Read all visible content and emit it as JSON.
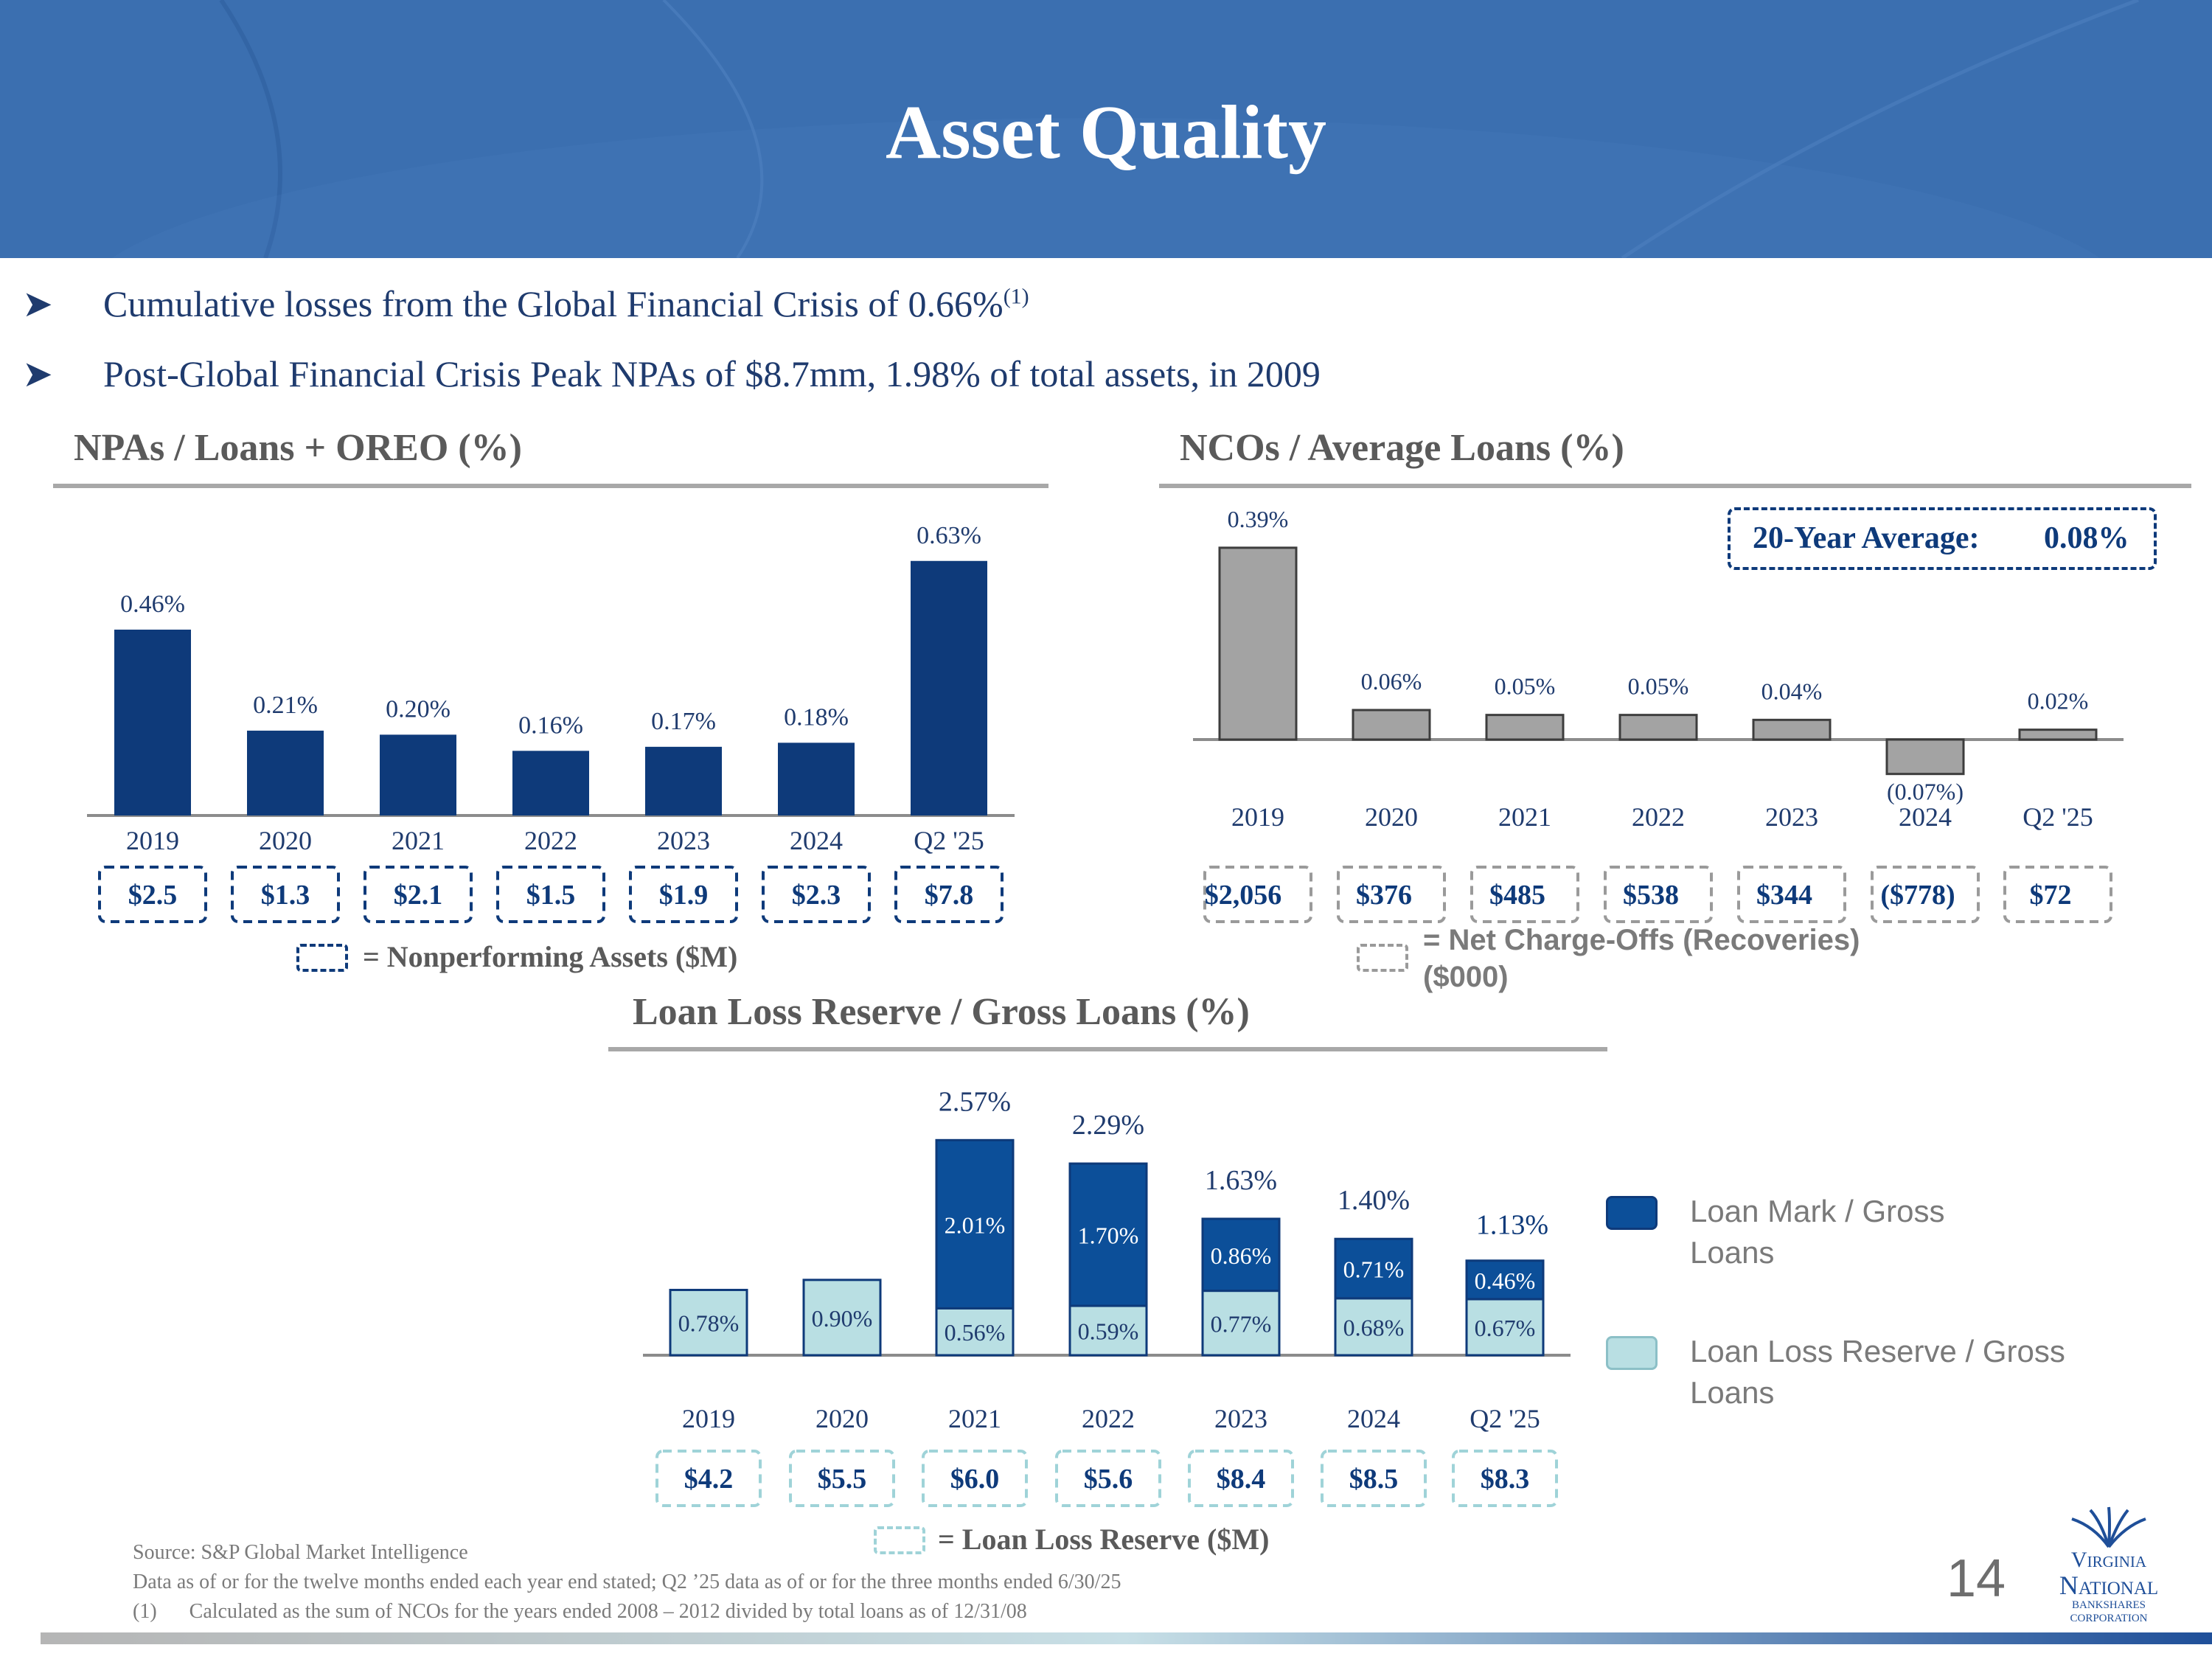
{
  "title": "Asset Quality",
  "bullets": [
    {
      "text": "Cumulative losses from the Global Financial Crisis of 0.66%",
      "sup": "(1)"
    },
    {
      "text": "Post-Global Financial Crisis Peak NPAs of $8.7mm, 1.98% of total assets, in 2009",
      "sup": ""
    }
  ],
  "colors": {
    "navy": "#0e3a7a",
    "gray_bar": "#a3a3a3",
    "mark_blue": "#0c4f99",
    "reserve_teal": "#b9dfe3",
    "header_blue": "#3b6fb0"
  },
  "icons": {
    "bullet": "arrowhead-icon",
    "logo": "virginia-national-logo"
  },
  "chart_data": [
    {
      "type": "bar",
      "title": "NPAs / Loans + OREO (%)",
      "categories": [
        "2019",
        "2020",
        "2021",
        "2022",
        "2023",
        "2024",
        "Q2 '25"
      ],
      "values": [
        0.46,
        0.21,
        0.2,
        0.16,
        0.17,
        0.18,
        0.63
      ],
      "value_labels": [
        "0.46%",
        "0.21%",
        "0.20%",
        "0.16%",
        "0.17%",
        "0.18%",
        "0.63%"
      ],
      "boxes": [
        "$2.5",
        "$1.3",
        "$2.1",
        "$1.5",
        "$1.9",
        "$2.3",
        "$7.8"
      ],
      "box_legend": "= Nonperforming Assets ($M)",
      "xlabel": "",
      "ylabel": "",
      "grid": false
    },
    {
      "type": "bar",
      "title": "NCOs / Average Loans (%)",
      "categories": [
        "2019",
        "2020",
        "2021",
        "2022",
        "2023",
        "2024",
        "Q2 '25"
      ],
      "values": [
        0.39,
        0.06,
        0.05,
        0.05,
        0.04,
        -0.07,
        0.02
      ],
      "value_labels": [
        "0.39%",
        "0.06%",
        "0.05%",
        "0.05%",
        "0.04%",
        "(0.07%)",
        "0.02%"
      ],
      "boxes": [
        "$2,056",
        "$376",
        "$485",
        "$538",
        "$344",
        "($778)",
        "$72"
      ],
      "box_legend": "= Net Charge-Offs (Recoveries) ($000)",
      "average_label": "20-Year Average:",
      "average_value": "0.08%",
      "xlabel": "",
      "ylabel": "",
      "grid": false
    },
    {
      "type": "bar",
      "stacked": true,
      "title": "Loan Loss Reserve / Gross Loans (%)",
      "categories": [
        "2019",
        "2020",
        "2021",
        "2022",
        "2023",
        "2024",
        "Q2 '25"
      ],
      "series": [
        {
          "name": "Loan Loss Reserve / Gross Loans",
          "values": [
            0.78,
            0.9,
            0.56,
            0.59,
            0.77,
            0.68,
            0.67
          ],
          "labels": [
            "0.78%",
            "0.90%",
            "0.56%",
            "0.59%",
            "0.77%",
            "0.68%",
            "0.67%"
          ]
        },
        {
          "name": "Loan Mark / Gross Loans",
          "values": [
            0,
            0,
            2.01,
            1.7,
            0.86,
            0.71,
            0.46
          ],
          "labels": [
            "",
            "",
            "2.01%",
            "1.70%",
            "0.86%",
            "0.71%",
            "0.46%"
          ]
        }
      ],
      "totals": [
        null,
        null,
        2.57,
        2.29,
        1.63,
        1.4,
        1.13
      ],
      "total_labels": [
        "",
        "",
        "2.57%",
        "2.29%",
        "1.63%",
        "1.40%",
        "1.13%"
      ],
      "boxes": [
        "$4.2",
        "$5.5",
        "$6.0",
        "$5.6",
        "$8.4",
        "$8.5",
        "$8.3"
      ],
      "box_legend": "= Loan Loss Reserve ($M)",
      "legend": "right",
      "xlabel": "",
      "ylabel": "",
      "grid": false
    }
  ],
  "legend": {
    "mark_line1": "Loan Mark / Gross",
    "mark_line2": "Loans",
    "reserve_line1": "Loan Loss Reserve / Gross",
    "reserve_line2": "Loans"
  },
  "footnotes": {
    "source": "Source: S&P Global Market Intelligence",
    "data_note": "Data as of or for the twelve months ended each year end stated; Q2 ’25 data as of or for the three months ended 6/30/25",
    "note1_num": "(1)",
    "note1_text": "Calculated as the sum of NCOs for the years ended 2008 – 2012 divided by total loans as of 12/31/08"
  },
  "page_number": "14",
  "logo": {
    "line1": "Virginia",
    "line2": "National",
    "line3": "Bankshares",
    "line4": "Corporation"
  }
}
